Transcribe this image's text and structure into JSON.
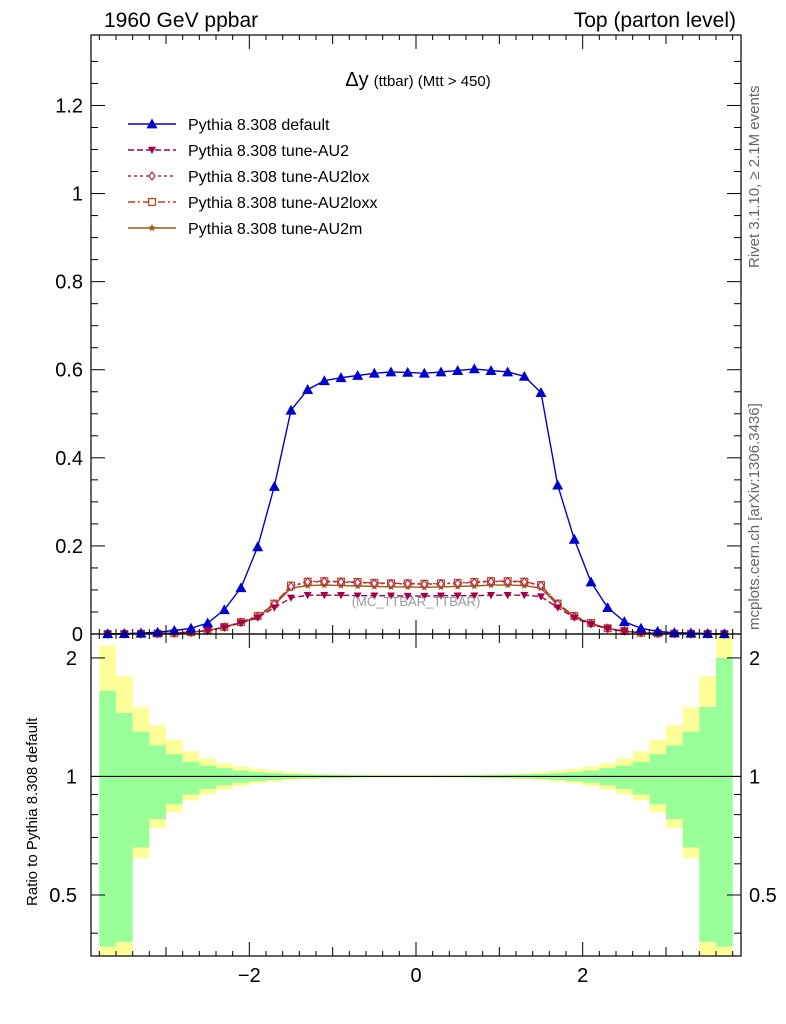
{
  "header": {
    "left": "1960 GeV ppbar",
    "right": "Top (parton level)"
  },
  "side_text": {
    "rivet": "Rivet 3.1.10, ≥ 2.1M events",
    "mcplots": "mcplots.cern.ch [arXiv:1306.3436]"
  },
  "watermark": "(MC_TTBAR_TTBAR)",
  "chart_data": [
    {
      "type": "line",
      "title": "Δy (ttbar) (Mtt > 450)",
      "title_main": "Δy",
      "title_rest": "(ttbar) (Mtt > 450)",
      "xlabel": "",
      "ylabel": "",
      "xlim": [
        -3.9,
        3.9
      ],
      "ylim": [
        0,
        1.36
      ],
      "yticks": [
        0,
        0.2,
        0.4,
        0.6,
        0.8,
        1,
        1.2
      ],
      "ytick_labels": [
        "0",
        "0.2",
        "0.4",
        "0.6",
        "0.8",
        "1",
        "1.2"
      ],
      "legend_position": "top-left",
      "x": [
        -3.7,
        -3.5,
        -3.3,
        -3.1,
        -2.9,
        -2.7,
        -2.5,
        -2.3,
        -2.1,
        -1.9,
        -1.7,
        -1.5,
        -1.3,
        -1.1,
        -0.9,
        -0.7,
        -0.5,
        -0.3,
        -0.1,
        0.1,
        0.3,
        0.5,
        0.7,
        0.9,
        1.1,
        1.3,
        1.5,
        1.7,
        1.9,
        2.1,
        2.3,
        2.5,
        2.7,
        2.9,
        3.1,
        3.3,
        3.5,
        3.7
      ],
      "series": [
        {
          "name": "Pythia 8.308 default",
          "color": "#0000cc",
          "marker": "triangle-up",
          "dash": "",
          "values": [
            0.0005,
            0.001,
            0.002,
            0.004,
            0.008,
            0.013,
            0.025,
            0.055,
            0.105,
            0.198,
            0.335,
            0.508,
            0.555,
            0.575,
            0.582,
            0.587,
            0.592,
            0.595,
            0.594,
            0.592,
            0.595,
            0.598,
            0.602,
            0.598,
            0.595,
            0.585,
            0.548,
            0.338,
            0.215,
            0.118,
            0.06,
            0.028,
            0.013,
            0.006,
            0.003,
            0.002,
            0.001,
            0.0005
          ]
        },
        {
          "name": "Pythia 8.308 tune-AU2",
          "color": "#a0004c",
          "marker": "triangle-down",
          "dash": "6,3",
          "values": [
            0.0001,
            0.0002,
            0.0004,
            0.001,
            0.002,
            0.004,
            0.008,
            0.015,
            0.025,
            0.037,
            0.06,
            0.082,
            0.088,
            0.088,
            0.088,
            0.087,
            0.087,
            0.087,
            0.086,
            0.086,
            0.087,
            0.087,
            0.087,
            0.088,
            0.088,
            0.088,
            0.085,
            0.06,
            0.037,
            0.022,
            0.012,
            0.006,
            0.003,
            0.0015,
            0.0007,
            0.0004,
            0.0002,
            0.0001
          ]
        },
        {
          "name": "Pythia 8.308 tune-AU2lox",
          "color": "#b02a52",
          "marker": "diamond",
          "dash": "3,3",
          "values": [
            0.0001,
            0.0002,
            0.0005,
            0.001,
            0.002,
            0.004,
            0.008,
            0.016,
            0.027,
            0.04,
            0.068,
            0.108,
            0.118,
            0.119,
            0.118,
            0.117,
            0.115,
            0.114,
            0.114,
            0.113,
            0.114,
            0.115,
            0.117,
            0.119,
            0.119,
            0.118,
            0.11,
            0.068,
            0.04,
            0.024,
            0.013,
            0.007,
            0.003,
            0.0015,
            0.0008,
            0.0004,
            0.0002,
            0.0001
          ]
        },
        {
          "name": "Pythia 8.308 tune-AU2loxx",
          "color": "#c84010",
          "marker": "square",
          "dash": "7,3,2,3",
          "values": [
            0.0001,
            0.0002,
            0.0005,
            0.001,
            0.002,
            0.004,
            0.008,
            0.016,
            0.027,
            0.041,
            0.069,
            0.11,
            0.119,
            0.12,
            0.119,
            0.118,
            0.116,
            0.115,
            0.115,
            0.114,
            0.115,
            0.116,
            0.118,
            0.12,
            0.12,
            0.119,
            0.111,
            0.069,
            0.041,
            0.025,
            0.013,
            0.007,
            0.003,
            0.0015,
            0.0008,
            0.0004,
            0.0002,
            0.0001
          ]
        },
        {
          "name": "Pythia 8.308 tune-AU2m",
          "color": "#9a5a10",
          "marker": "star",
          "dash": "",
          "values": [
            0.0001,
            0.0002,
            0.0004,
            0.001,
            0.002,
            0.004,
            0.008,
            0.015,
            0.026,
            0.039,
            0.066,
            0.104,
            0.11,
            0.111,
            0.11,
            0.109,
            0.108,
            0.107,
            0.107,
            0.106,
            0.107,
            0.108,
            0.109,
            0.111,
            0.111,
            0.11,
            0.104,
            0.066,
            0.039,
            0.023,
            0.012,
            0.006,
            0.003,
            0.0014,
            0.0007,
            0.0004,
            0.0002,
            0.0001
          ]
        }
      ]
    },
    {
      "type": "area",
      "title": "",
      "xlabel": "",
      "ylabel": "Ratio to Pythia 8.308 default",
      "xlim": [
        -3.9,
        3.9
      ],
      "ylim": [
        0.35,
        2.3
      ],
      "ylog": true,
      "xticks": [
        -2,
        0,
        2
      ],
      "xtick_labels": [
        "−2",
        "0",
        "2"
      ],
      "yticks": [
        0.5,
        1,
        2
      ],
      "ytick_labels": [
        "0.5",
        "1",
        "2"
      ],
      "reference_line": 1,
      "bin_edges": [
        -3.8,
        -3.6,
        -3.4,
        -3.2,
        -3.0,
        -2.8,
        -2.6,
        -2.4,
        -2.2,
        -2.0,
        -1.8,
        -1.6,
        -1.4,
        -1.2,
        -1.0,
        -0.8,
        -0.6,
        -0.4,
        -0.2,
        0.0,
        0.2,
        0.4,
        0.6,
        0.8,
        1.0,
        1.2,
        1.4,
        1.6,
        1.8,
        2.0,
        2.2,
        2.4,
        2.6,
        2.8,
        3.0,
        3.2,
        3.4,
        3.6,
        3.8
      ],
      "bands": [
        {
          "name": "stat + syst",
          "color": "#ffff99",
          "upper": [
            2.15,
            1.8,
            1.5,
            1.35,
            1.24,
            1.16,
            1.11,
            1.08,
            1.06,
            1.045,
            1.035,
            1.025,
            1.02,
            1.015,
            1.012,
            1.01,
            1.01,
            1.008,
            1.008,
            1.008,
            1.008,
            1.01,
            1.01,
            1.012,
            1.015,
            1.02,
            1.025,
            1.035,
            1.045,
            1.06,
            1.08,
            1.11,
            1.16,
            1.24,
            1.35,
            1.5,
            1.8,
            2.3
          ],
          "lower": [
            0.35,
            0.35,
            0.62,
            0.74,
            0.81,
            0.87,
            0.9,
            0.925,
            0.945,
            0.96,
            0.97,
            0.978,
            0.983,
            0.987,
            0.99,
            0.992,
            0.993,
            0.994,
            0.994,
            0.994,
            0.994,
            0.993,
            0.992,
            0.99,
            0.987,
            0.983,
            0.978,
            0.97,
            0.96,
            0.945,
            0.925,
            0.9,
            0.87,
            0.81,
            0.74,
            0.62,
            0.35,
            0.35
          ]
        },
        {
          "name": "stat",
          "color": "#99ff99",
          "upper": [
            1.65,
            1.45,
            1.3,
            1.2,
            1.14,
            1.09,
            1.065,
            1.05,
            1.035,
            1.025,
            1.02,
            1.015,
            1.012,
            1.01,
            1.008,
            1.006,
            1.005,
            1.005,
            1.004,
            1.004,
            1.005,
            1.005,
            1.006,
            1.008,
            1.01,
            1.012,
            1.015,
            1.02,
            1.025,
            1.035,
            1.05,
            1.065,
            1.09,
            1.14,
            1.2,
            1.3,
            1.5,
            2.0
          ],
          "lower": [
            0.37,
            0.38,
            0.66,
            0.78,
            0.85,
            0.9,
            0.93,
            0.95,
            0.963,
            0.972,
            0.98,
            0.985,
            0.988,
            0.99,
            0.992,
            0.994,
            0.995,
            0.995,
            0.996,
            0.996,
            0.995,
            0.995,
            0.994,
            0.992,
            0.99,
            0.988,
            0.985,
            0.98,
            0.972,
            0.963,
            0.95,
            0.93,
            0.9,
            0.85,
            0.78,
            0.66,
            0.38,
            0.37
          ]
        }
      ]
    }
  ]
}
